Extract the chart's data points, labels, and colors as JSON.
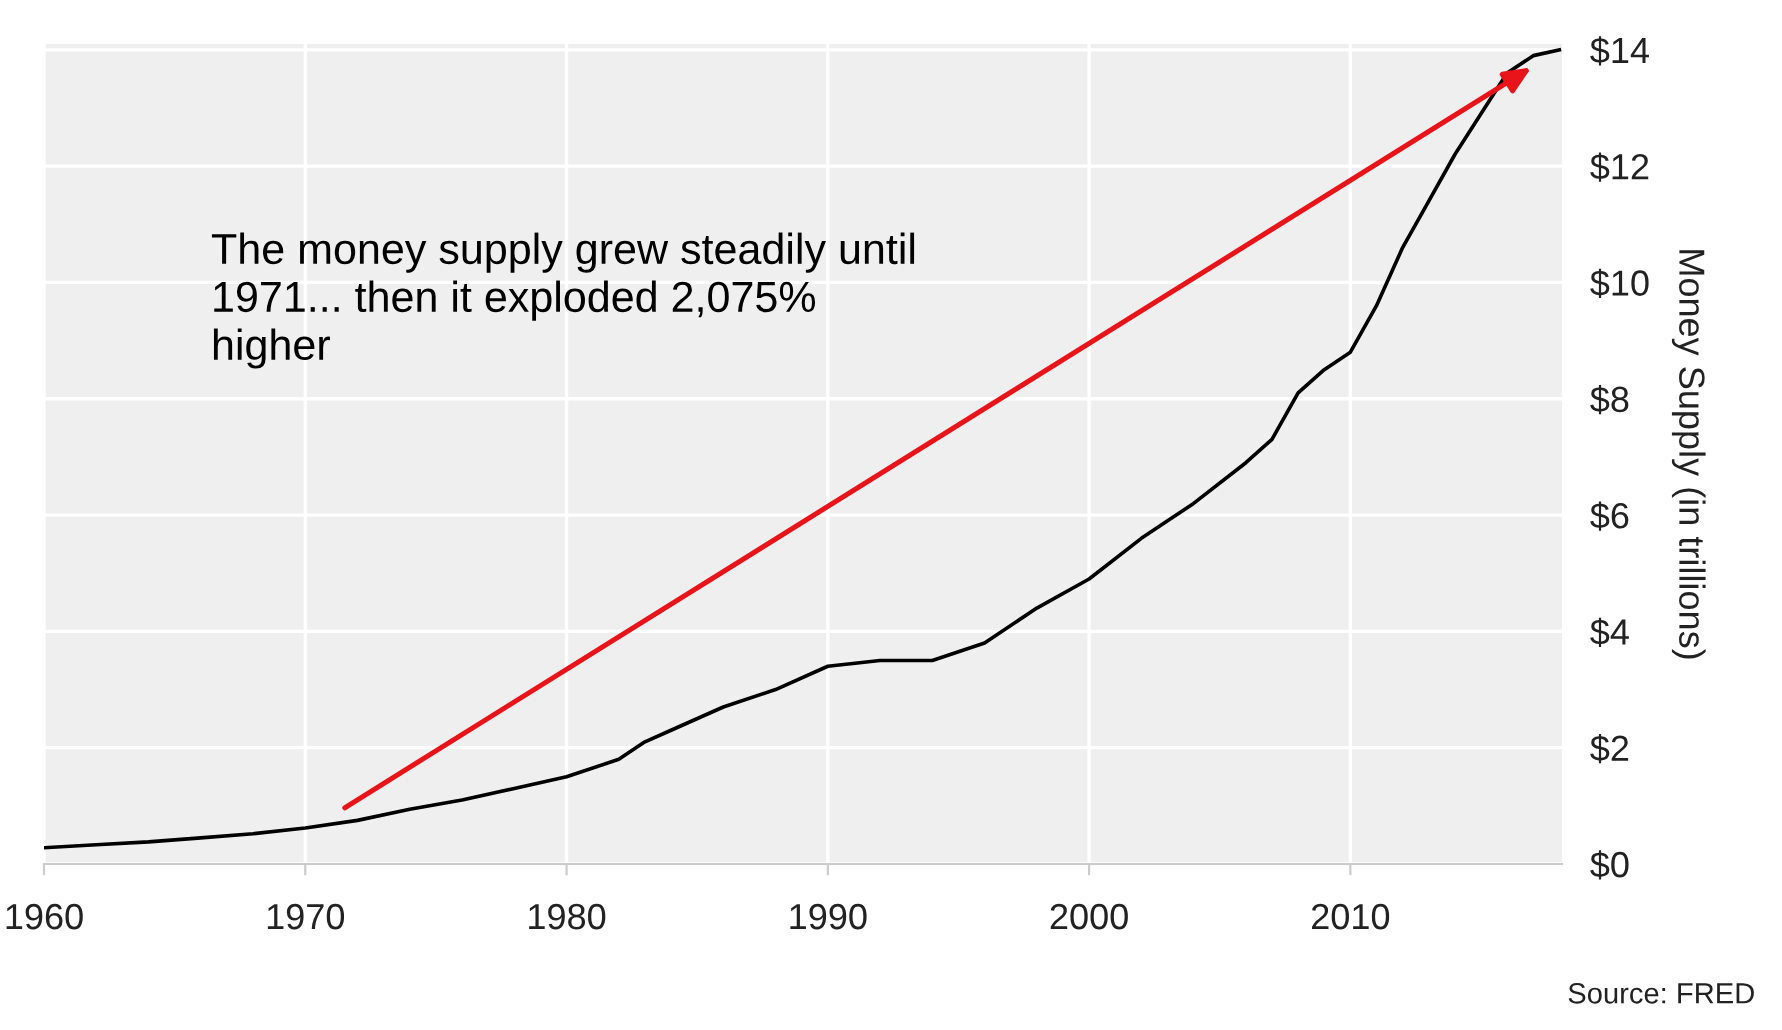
{
  "chart_data": {
    "type": "line",
    "ylabel": "Money Supply (in trillions)",
    "x": [
      1960,
      1962,
      1964,
      1966,
      1968,
      1970,
      1972,
      1974,
      1976,
      1978,
      1980,
      1982,
      1983,
      1984,
      1986,
      1988,
      1990,
      1992,
      1994,
      1996,
      1998,
      2000,
      2002,
      2004,
      2006,
      2007,
      2008,
      2009,
      2010,
      2011,
      2012,
      2013,
      2014,
      2015,
      2016,
      2017,
      2018
    ],
    "series": [
      {
        "color": "#000000",
        "values": [
          0.28,
          0.33,
          0.38,
          0.45,
          0.52,
          0.62,
          0.75,
          0.94,
          1.1,
          1.3,
          1.5,
          1.8,
          2.1,
          2.3,
          2.7,
          3.0,
          3.4,
          3.5,
          3.5,
          3.8,
          4.4,
          4.9,
          5.6,
          6.2,
          6.9,
          7.3,
          8.1,
          8.5,
          8.8,
          9.6,
          10.6,
          11.4,
          12.2,
          12.9,
          13.6,
          13.9,
          14.0
        ]
      }
    ],
    "xlim": [
      1960,
      2018.1
    ],
    "ylim": [
      0,
      14.1
    ],
    "xticks": [
      1960,
      1970,
      1980,
      1990,
      2000,
      2010
    ],
    "yticks": [
      {
        "value": 0,
        "label": "$0"
      },
      {
        "value": 2,
        "label": "$2"
      },
      {
        "value": 4,
        "label": "$4"
      },
      {
        "value": 6,
        "label": "$6"
      },
      {
        "value": 8,
        "label": "$8"
      },
      {
        "value": 10,
        "label": "$10"
      },
      {
        "value": 12,
        "label": "$12"
      },
      {
        "value": 14,
        "label": "$14"
      }
    ],
    "grid": true,
    "legend": false,
    "annotations": [
      "The money supply grew steadily until\n1971... then it exploded 2,075%\nhigher",
      "Source: FRED"
    ]
  }
}
